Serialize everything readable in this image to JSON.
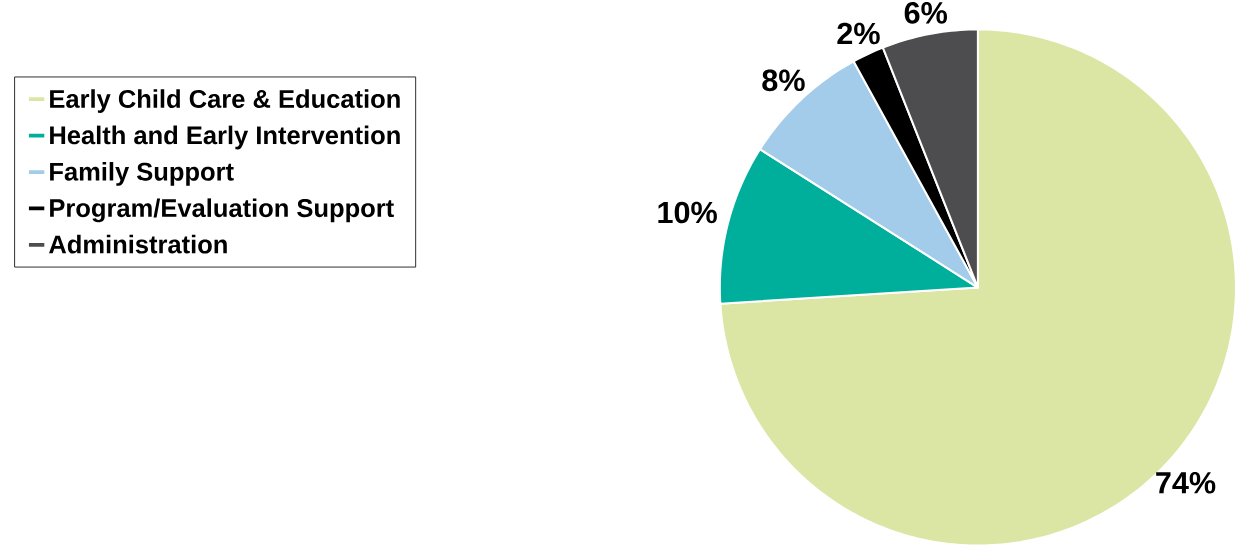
{
  "chart_data": {
    "type": "pie",
    "categories": [
      "Early Child Care & Education",
      "Health and Early Intervention",
      "Family Support",
      "Program/Evaluation Support",
      "Administration"
    ],
    "values": [
      74,
      10,
      8,
      2,
      6
    ],
    "value_labels": [
      "74%",
      "10%",
      "8%",
      "2%",
      "6%"
    ],
    "colors": [
      "#dce6a4",
      "#00af9b",
      "#a3cbea",
      "#000000",
      "#4d4d4f"
    ],
    "legend": "left"
  }
}
